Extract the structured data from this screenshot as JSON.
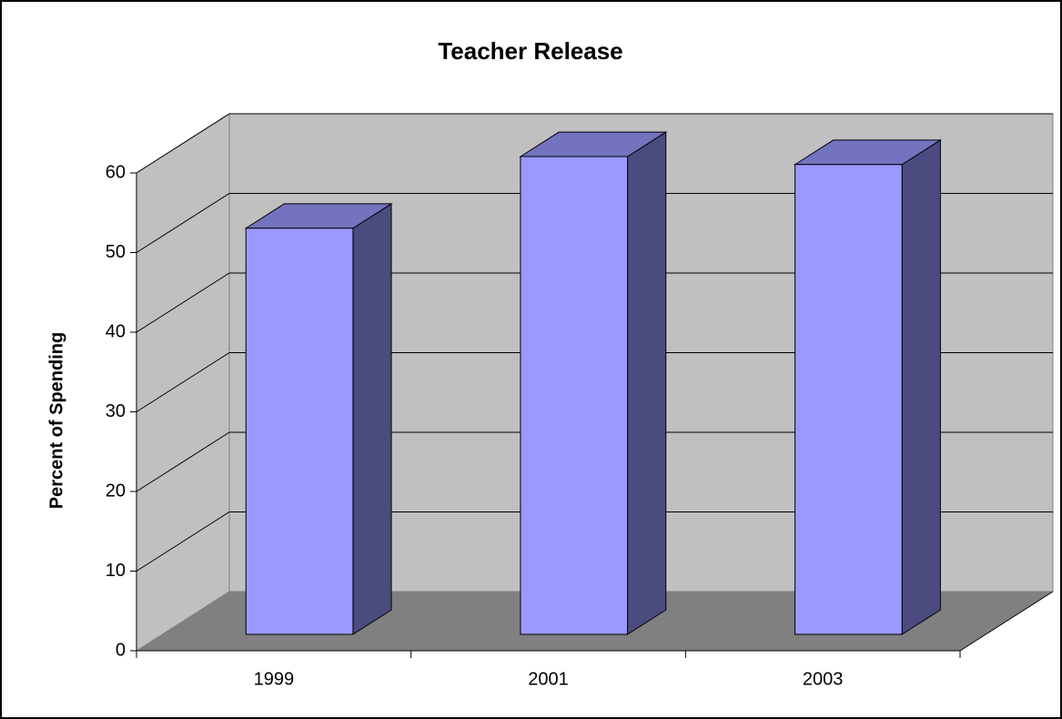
{
  "chart_data": {
    "type": "bar",
    "title": "Teacher Release",
    "y_label": "Percent of Spending",
    "categories": [
      "1999",
      "2001",
      "2003"
    ],
    "values": [
      51,
      60,
      59
    ],
    "color": "#9999ff",
    "ylim": [
      0,
      60
    ],
    "yticks": [
      0,
      10,
      20,
      30,
      40,
      50,
      60
    ],
    "grid": true
  }
}
